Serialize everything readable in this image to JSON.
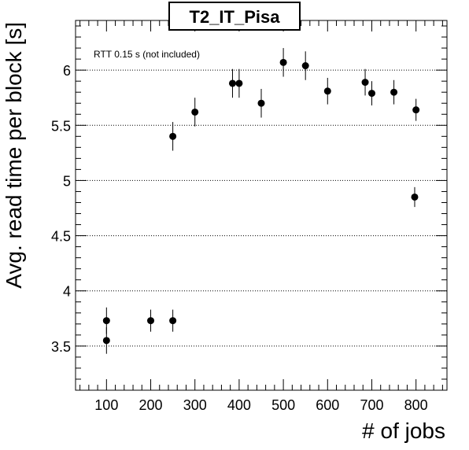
{
  "chart_data": {
    "type": "scatter",
    "title": "T2_IT_Pisa",
    "xlabel": "# of jobs",
    "ylabel": "Avg. read time per block [s]",
    "annotation": "RTT 0.15 s (not included)",
    "xlim": [
      30,
      870
    ],
    "ylim": [
      3.1,
      6.45
    ],
    "x_ticks": [
      100,
      200,
      300,
      400,
      500,
      600,
      700,
      800
    ],
    "y_ticks": [
      3.5,
      4,
      4.5,
      5,
      5.5,
      6
    ],
    "y_tick_labels": [
      "3.5",
      "4",
      "4.5",
      "5",
      "5.5",
      "6"
    ],
    "grid": "horizontal dotted",
    "series": [
      {
        "points": [
          {
            "x": 100,
            "y": 3.73,
            "err": 0.12
          },
          {
            "x": 100,
            "y": 3.55,
            "err": 0.12
          },
          {
            "x": 200,
            "y": 3.73,
            "err": 0.1
          },
          {
            "x": 250,
            "y": 3.73,
            "err": 0.1
          },
          {
            "x": 250,
            "y": 5.4,
            "err": 0.13
          },
          {
            "x": 300,
            "y": 5.62,
            "err": 0.13
          },
          {
            "x": 385,
            "y": 5.88,
            "err": 0.13
          },
          {
            "x": 400,
            "y": 5.88,
            "err": 0.13
          },
          {
            "x": 450,
            "y": 5.7,
            "err": 0.13
          },
          {
            "x": 500,
            "y": 6.07,
            "err": 0.13
          },
          {
            "x": 550,
            "y": 6.04,
            "err": 0.13
          },
          {
            "x": 600,
            "y": 5.81,
            "err": 0.12
          },
          {
            "x": 685,
            "y": 5.89,
            "err": 0.12
          },
          {
            "x": 700,
            "y": 5.79,
            "err": 0.11
          },
          {
            "x": 750,
            "y": 5.8,
            "err": 0.11
          },
          {
            "x": 800,
            "y": 5.64,
            "err": 0.1
          },
          {
            "x": 797,
            "y": 4.85,
            "err": 0.09
          }
        ]
      }
    ]
  }
}
